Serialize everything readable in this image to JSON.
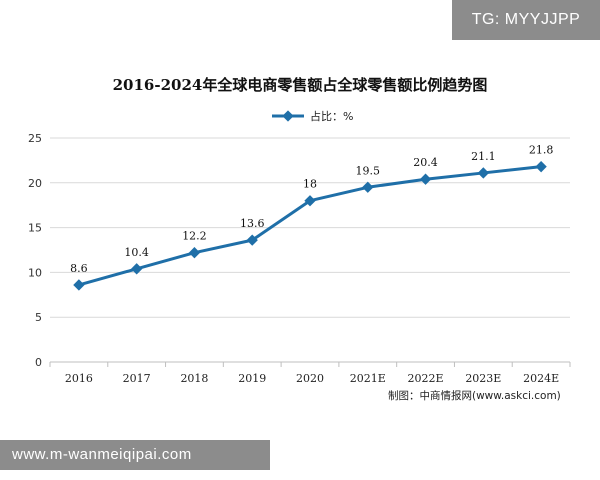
{
  "overlay_tag": "TG: MYYJJPP",
  "footer_text": "www.m-wanmeiqipai.com",
  "source": "制图：中商情报网(www.askci.com)",
  "colors": {
    "line": "#1f6fa8",
    "grid": "#d9d9d9",
    "axis": "#bfbfbf"
  },
  "chart_data": {
    "type": "line",
    "title": "2016-2024年全球电商零售额占全球零售额比例趋势图",
    "categories": [
      "2016",
      "2017",
      "2018",
      "2019",
      "2020",
      "2021E",
      "2022E",
      "2023E",
      "2024E"
    ],
    "series": [
      {
        "name": "占比：%",
        "values": [
          8.6,
          10.4,
          12.2,
          13.6,
          18,
          19.5,
          20.4,
          21.1,
          21.8
        ],
        "labels": [
          "8.6",
          "10.4",
          "12.2",
          "13.6",
          "18",
          "19.5",
          "20.4",
          "21.1",
          "21.8"
        ]
      }
    ],
    "yticks": [
      0,
      5,
      10,
      15,
      20,
      25
    ],
    "ylim": [
      0,
      25
    ],
    "grid": true,
    "legend": "top-center"
  }
}
